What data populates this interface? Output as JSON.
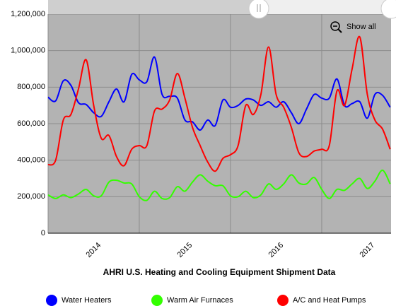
{
  "chart_data": {
    "type": "line",
    "title": "AHRI U.S. Heating and Cooling Equipment Shipment Data",
    "zoom_button": "Show all",
    "x": [
      2014,
      2014.083,
      2014.167,
      2014.25,
      2014.333,
      2014.417,
      2014.5,
      2014.583,
      2014.667,
      2014.75,
      2014.833,
      2014.917,
      2015,
      2015.083,
      2015.167,
      2015.25,
      2015.333,
      2015.417,
      2015.5,
      2015.583,
      2015.667,
      2015.75,
      2015.833,
      2015.917,
      2016,
      2016.083,
      2016.167,
      2016.25,
      2016.333,
      2016.417,
      2016.5,
      2016.583,
      2016.667,
      2016.75,
      2016.833,
      2016.917,
      2017,
      2017.083,
      2017.167,
      2017.25,
      2017.333,
      2017.417,
      2017.5,
      2017.583,
      2017.667,
      2017.75
    ],
    "series": [
      {
        "name": "Water Heaters",
        "color": "#0000ff",
        "values": [
          745000,
          725000,
          835000,
          810000,
          715000,
          705000,
          660000,
          640000,
          720000,
          790000,
          720000,
          870000,
          840000,
          830000,
          965000,
          760000,
          750000,
          740000,
          620000,
          610000,
          565000,
          620000,
          590000,
          730000,
          690000,
          700000,
          735000,
          730000,
          700000,
          720000,
          690000,
          720000,
          660000,
          600000,
          680000,
          760000,
          740000,
          740000,
          845000,
          700000,
          710000,
          720000,
          630000,
          760000,
          755000,
          690000
        ]
      },
      {
        "name": "Warm Air Furnaces",
        "color": "#33ff00",
        "values": [
          210000,
          190000,
          210000,
          195000,
          215000,
          240000,
          205000,
          205000,
          280000,
          290000,
          275000,
          270000,
          200000,
          180000,
          230000,
          190000,
          195000,
          255000,
          230000,
          280000,
          320000,
          285000,
          260000,
          260000,
          205000,
          200000,
          230000,
          195000,
          210000,
          270000,
          240000,
          270000,
          320000,
          275000,
          270000,
          305000,
          240000,
          190000,
          240000,
          235000,
          270000,
          300000,
          245000,
          285000,
          345000,
          270000
        ]
      },
      {
        "name": "A/C and Heat Pumps",
        "color": "#ff0000",
        "values": [
          375000,
          400000,
          620000,
          650000,
          790000,
          950000,
          700000,
          520000,
          535000,
          420000,
          370000,
          460000,
          480000,
          480000,
          670000,
          680000,
          730000,
          875000,
          740000,
          580000,
          480000,
          390000,
          340000,
          410000,
          430000,
          480000,
          700000,
          650000,
          760000,
          1020000,
          760000,
          690000,
          580000,
          440000,
          420000,
          450000,
          460000,
          480000,
          780000,
          700000,
          900000,
          1075000,
          760000,
          620000,
          570000,
          460000
        ]
      }
    ],
    "xlim": [
      2014,
      2017.76
    ],
    "xticks": [
      2014,
      2015,
      2016,
      2017
    ],
    "ylim": [
      0,
      1200000
    ],
    "yticks": [
      0,
      {
        "value": 200000,
        "label": "200,000"
      },
      {
        "value": 400000,
        "label": "400,000"
      },
      {
        "value": 600000,
        "label": "600,000"
      },
      {
        "value": 800000,
        "label": "800,000"
      },
      {
        "value": 1000000,
        "label": "1,000,000"
      },
      {
        "value": 1200000,
        "label": "1,200,000"
      }
    ],
    "grid": true,
    "legend": "bottom",
    "background": "#b3b3b3"
  }
}
